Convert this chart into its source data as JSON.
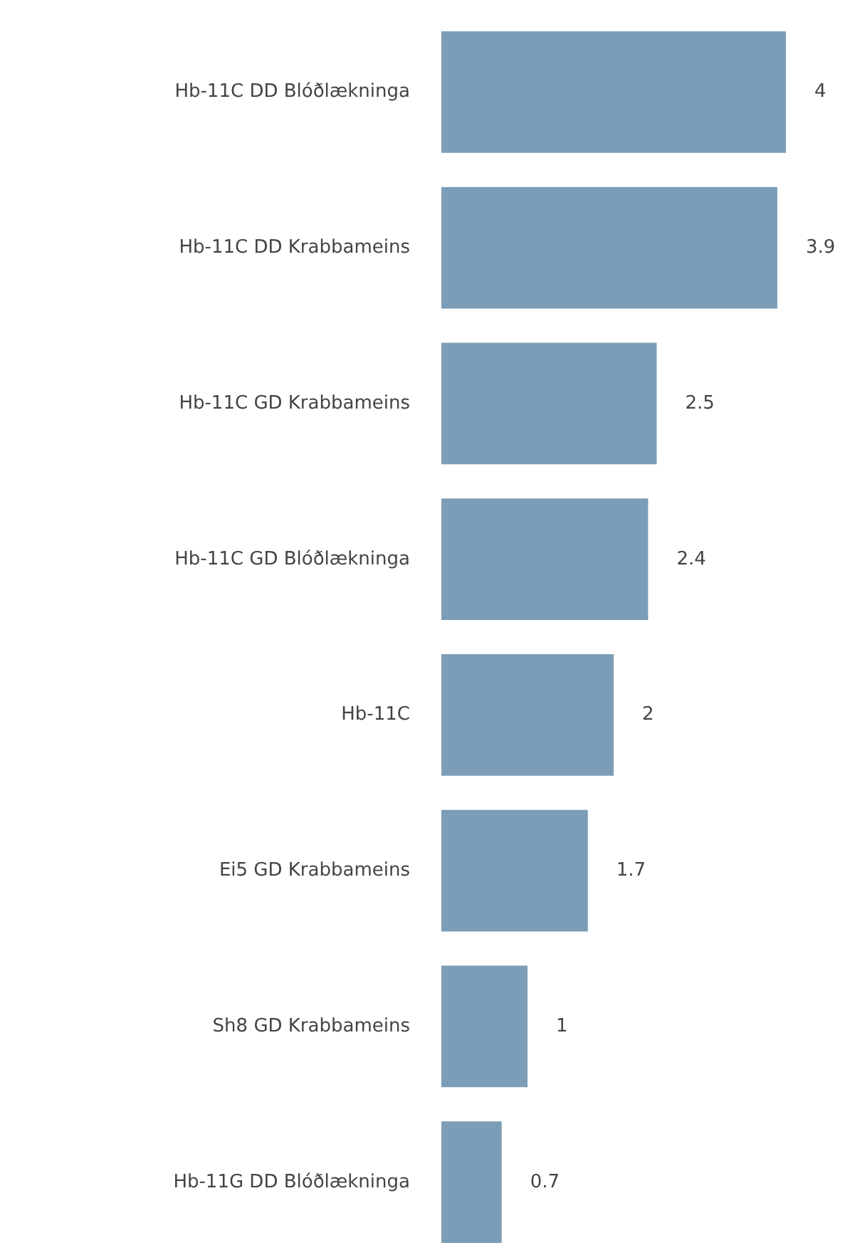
{
  "chart_data": {
    "type": "bar",
    "orientation": "horizontal",
    "categories": [
      "Hb-11C DD Blóðlækninga",
      "Hb-11C DD Krabbameins",
      "Hb-11C GD Krabbameins",
      "Hb-11C GD Blóðlækninga",
      "Hb-11C",
      "Ei5 GD Krabbameins",
      "Sh8 GD Krabbameins",
      "Hb-11G DD Blóðlækninga"
    ],
    "values": [
      4,
      3.9,
      2.5,
      2.4,
      2,
      1.7,
      1,
      0.7
    ],
    "color": "#7b9db7",
    "data_labels": true
  }
}
